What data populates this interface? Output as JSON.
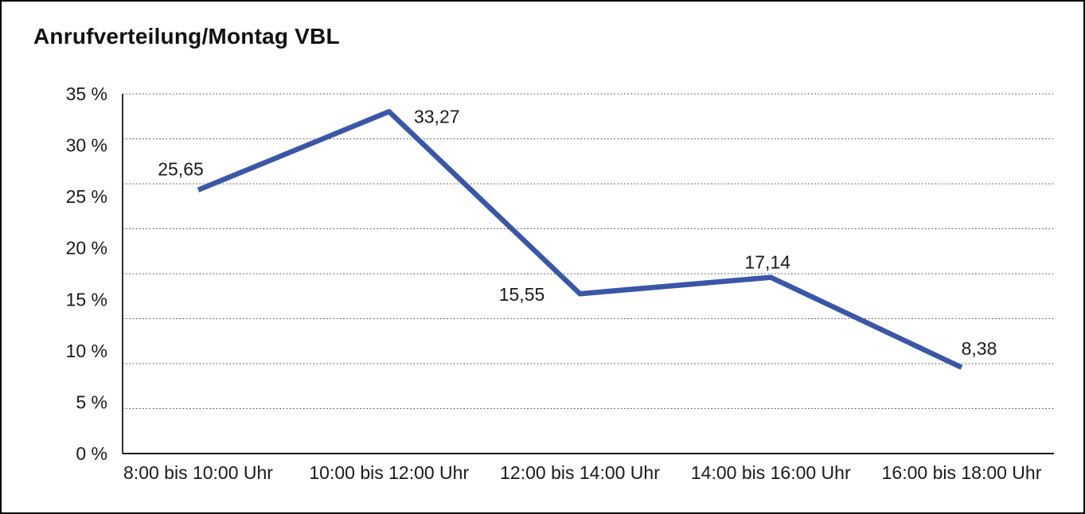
{
  "chart_data": {
    "type": "line",
    "title": "Anrufverteilung/Montag VBL",
    "categories": [
      "8:00 bis 10:00 Uhr",
      "10:00 bis 12:00 Uhr",
      "12:00 bis 14:00 Uhr",
      "14:00 bis 16:00 Uhr",
      "16:00 bis 18:00 Uhr"
    ],
    "values": [
      25.65,
      33.27,
      15.55,
      17.14,
      8.38
    ],
    "value_labels": [
      "25,65",
      "33,27",
      "15,55",
      "17,14",
      "8,38"
    ],
    "unit": "%",
    "xlabel": "",
    "ylabel": "",
    "ylim": [
      0,
      35
    ],
    "ytick_step": 5,
    "ytick_labels": [
      "0 %",
      "5 %",
      "10 %",
      "15 %",
      "20 %",
      "25 %",
      "30 %",
      "35 %"
    ],
    "grid": "horizontal-dotted",
    "grid_divisions": 8,
    "legend": "none",
    "colors": {
      "line": "#3A57A7",
      "grid": "#4a4a4a",
      "axis": "#1c1c1c",
      "text": "#1a1a1a",
      "background": "#ffffff",
      "frame_border": "#000000"
    }
  }
}
